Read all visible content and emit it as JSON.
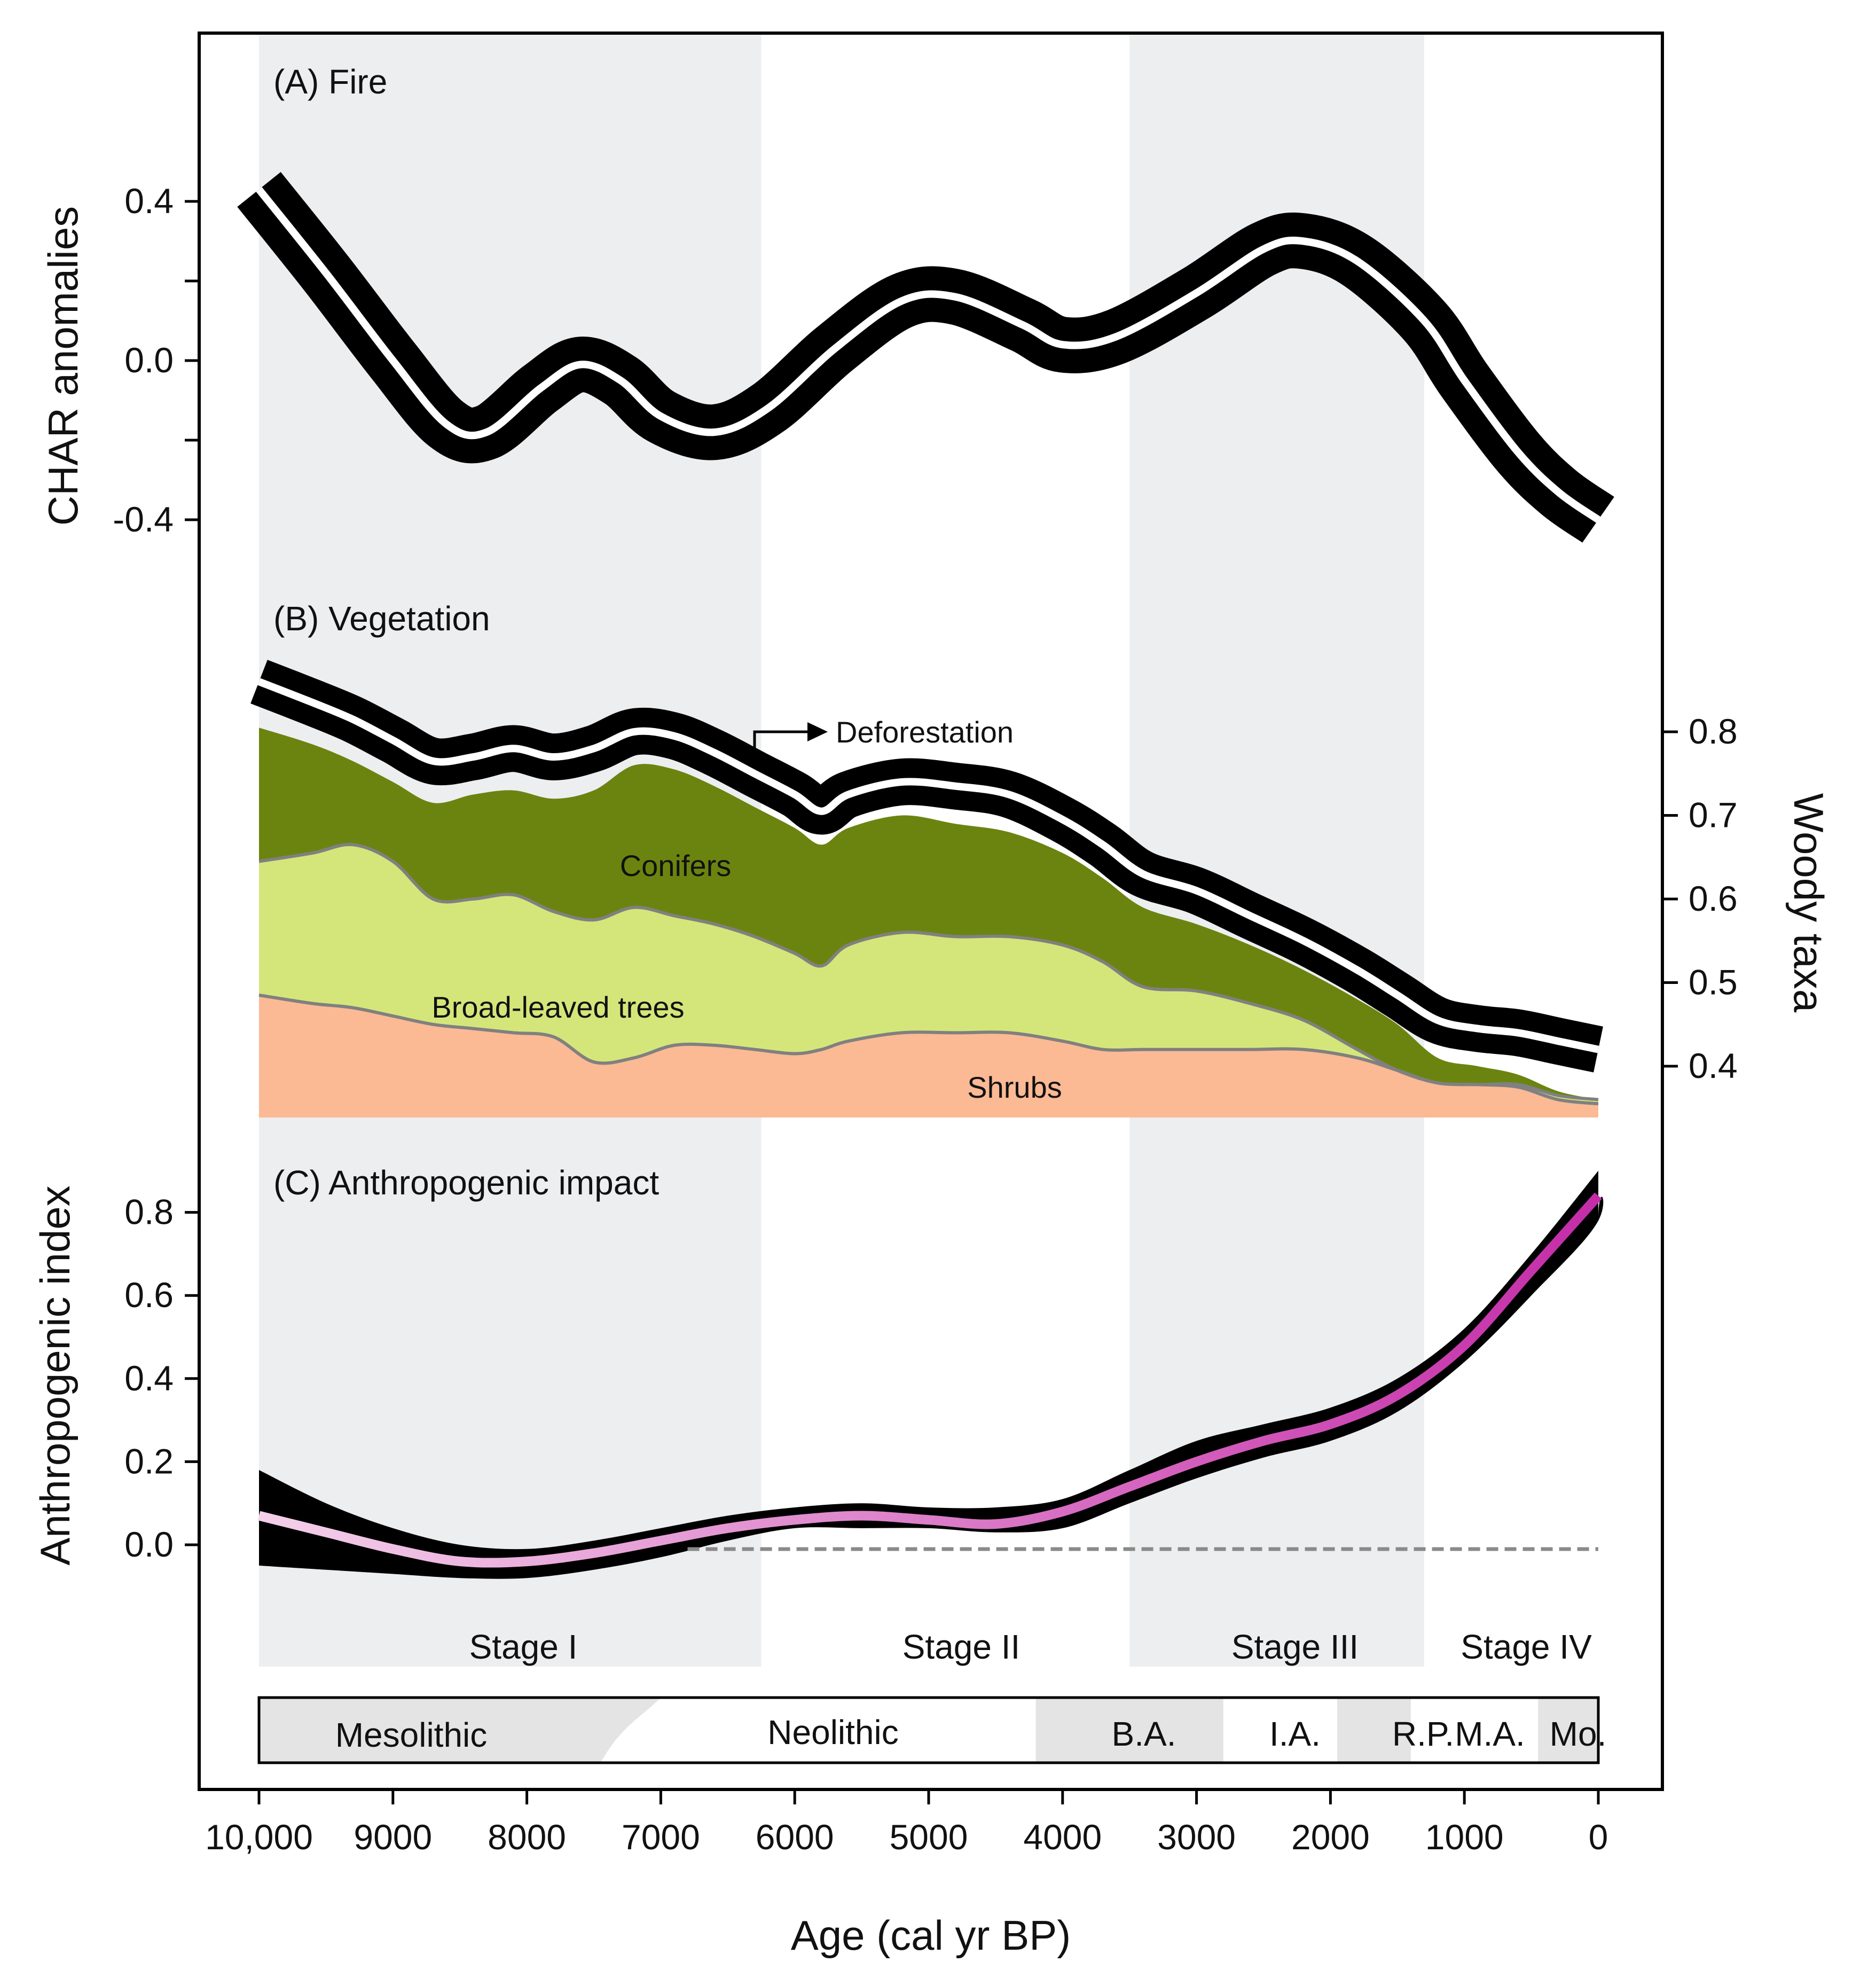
{
  "chart_data": [
    {
      "panel": "A",
      "type": "line",
      "title": "(A) Fire",
      "ylabel": "CHAR anomalies",
      "yticks": [
        0.4,
        0.0,
        -0.4
      ],
      "ytick_labels": [
        "0.4",
        "0.0",
        "-0.4"
      ],
      "ylim": [
        -0.55,
        0.65
      ],
      "series": [
        {
          "name": "CHAR anomalies",
          "x": [
            10000,
            9500,
            9000,
            8600,
            8300,
            7900,
            7600,
            7300,
            7000,
            6600,
            6200,
            5700,
            5200,
            4800,
            4300,
            4000,
            3600,
            3000,
            2500,
            2200,
            1800,
            1300,
            1000,
            600,
            300,
            0
          ],
          "y": [
            0.43,
            0.22,
            0.0,
            -0.16,
            -0.18,
            -0.07,
            -0.01,
            -0.05,
            -0.14,
            -0.18,
            -0.12,
            0.03,
            0.15,
            0.16,
            0.09,
            0.04,
            0.06,
            0.17,
            0.28,
            0.3,
            0.25,
            0.1,
            -0.05,
            -0.23,
            -0.33,
            -0.4
          ],
          "band": 0.07
        }
      ]
    },
    {
      "panel": "B",
      "type": "area",
      "title": "(B) Vegetation",
      "ylabel": "Woody taxa",
      "yticks": [
        0.8,
        0.7,
        0.6,
        0.5,
        0.4
      ],
      "ytick_labels": [
        "0.8",
        "0.7",
        "0.6",
        "0.5",
        "0.4"
      ],
      "ylim": [
        0.34,
        0.88
      ],
      "x": [
        10000,
        9600,
        9300,
        9000,
        8700,
        8400,
        8100,
        7800,
        7500,
        7200,
        6900,
        6600,
        6300,
        6000,
        5800,
        5600,
        5200,
        4800,
        4400,
        4000,
        3700,
        3400,
        3000,
        2600,
        2200,
        1800,
        1500,
        1200,
        900,
        600,
        300,
        0
      ],
      "series": [
        {
          "name": "Shrubs",
          "label": "Shrubs",
          "color": "#fbb994",
          "values": [
            0.485,
            0.475,
            0.47,
            0.46,
            0.45,
            0.445,
            0.44,
            0.435,
            0.405,
            0.41,
            0.425,
            0.425,
            0.42,
            0.415,
            0.42,
            0.43,
            0.44,
            0.44,
            0.44,
            0.43,
            0.42,
            0.42,
            0.42,
            0.42,
            0.42,
            0.41,
            0.395,
            0.38,
            0.378,
            0.375,
            0.36,
            0.355
          ]
        },
        {
          "name": "Broad-leaved trees",
          "label": "Broad-leaved trees",
          "color": "#d4e67a",
          "values": [
            0.645,
            0.655,
            0.665,
            0.645,
            0.6,
            0.6,
            0.605,
            0.585,
            0.575,
            0.59,
            0.58,
            0.57,
            0.555,
            0.535,
            0.52,
            0.545,
            0.56,
            0.555,
            0.555,
            0.545,
            0.525,
            0.495,
            0.49,
            0.475,
            0.455,
            0.42,
            0.395,
            0.38,
            0.378,
            0.378,
            0.365,
            0.36
          ]
        },
        {
          "name": "Conifers",
          "label": "Conifers",
          "color": "#6b8410",
          "values": [
            0.805,
            0.785,
            0.765,
            0.74,
            0.715,
            0.725,
            0.73,
            0.72,
            0.73,
            0.76,
            0.755,
            0.735,
            0.71,
            0.685,
            0.665,
            0.685,
            0.7,
            0.69,
            0.68,
            0.655,
            0.625,
            0.59,
            0.57,
            0.545,
            0.515,
            0.48,
            0.45,
            0.41,
            0.4,
            0.39,
            0.37,
            0.36
          ]
        }
      ],
      "woody_total": {
        "name": "Woody taxa",
        "values": [
          0.86,
          0.835,
          0.815,
          0.79,
          0.765,
          0.77,
          0.78,
          0.77,
          0.78,
          0.8,
          0.795,
          0.775,
          0.75,
          0.725,
          0.705,
          0.725,
          0.74,
          0.735,
          0.725,
          0.695,
          0.665,
          0.63,
          0.61,
          0.58,
          0.55,
          0.515,
          0.485,
          0.455,
          0.445,
          0.44,
          0.43,
          0.42
        ],
        "band": 0.028
      },
      "annotations": [
        {
          "text": "Deforestation",
          "x": 6400
        }
      ]
    },
    {
      "panel": "C",
      "type": "line",
      "title": "(C) Anthropogenic impact",
      "ylabel": "Anthropogenic index",
      "yticks": [
        0.8,
        0.6,
        0.4,
        0.2,
        0.0
      ],
      "ytick_labels": [
        "0.8",
        "0.6",
        "0.4",
        "0.2",
        "0.0"
      ],
      "ylim": [
        -0.13,
        0.95
      ],
      "baseline": 0.0,
      "series": [
        {
          "name": "Anthropogenic index",
          "x": [
            10000,
            9500,
            9000,
            8500,
            8000,
            7500,
            7000,
            6500,
            6000,
            5500,
            5000,
            4500,
            4000,
            3500,
            3000,
            2500,
            2000,
            1500,
            1000,
            500,
            0
          ],
          "y": [
            0.07,
            0.03,
            -0.01,
            -0.04,
            -0.04,
            -0.02,
            0.01,
            0.04,
            0.06,
            0.07,
            0.06,
            0.05,
            0.08,
            0.14,
            0.2,
            0.25,
            0.29,
            0.36,
            0.48,
            0.66,
            0.84
          ],
          "upper": [
            0.18,
            0.1,
            0.04,
            0.0,
            -0.01,
            0.01,
            0.04,
            0.07,
            0.09,
            0.1,
            0.09,
            0.09,
            0.11,
            0.18,
            0.25,
            0.29,
            0.33,
            0.4,
            0.52,
            0.7,
            0.9
          ],
          "lower": [
            -0.05,
            -0.06,
            -0.07,
            -0.08,
            -0.08,
            -0.06,
            -0.03,
            0.01,
            0.04,
            0.04,
            0.04,
            0.03,
            0.04,
            0.1,
            0.16,
            0.21,
            0.25,
            0.32,
            0.44,
            0.6,
            0.78
          ]
        }
      ]
    }
  ],
  "xaxis": {
    "label": "Age (cal yr BP)",
    "ticks": [
      10000,
      9000,
      8000,
      7000,
      6000,
      5000,
      4000,
      3000,
      2000,
      1000,
      0
    ],
    "tick_labels": [
      "10,000",
      "9000",
      "8000",
      "7000",
      "6000",
      "5000",
      "4000",
      "3000",
      "2000",
      "1000",
      "0"
    ],
    "xlim": [
      10450,
      -400
    ]
  },
  "stages": [
    {
      "label": "Stage I",
      "from": 10000,
      "to": 6250,
      "shaded": true
    },
    {
      "label": "Stage II",
      "from": 6250,
      "to": 3500,
      "shaded": false
    },
    {
      "label": "Stage III",
      "from": 3500,
      "to": 1300,
      "shaded": true
    },
    {
      "label": "Stage IV",
      "from": 1300,
      "to": 0,
      "shaded": false
    }
  ],
  "periods": [
    {
      "label": "Mesolithic",
      "from": 10000,
      "to": 7000,
      "shaded": true
    },
    {
      "label": "Neolithic",
      "from": 7000,
      "to": 4200,
      "shaded": false
    },
    {
      "label": "B.A.",
      "from": 4200,
      "to": 2800,
      "shaded": true
    },
    {
      "label": "I.A.",
      "from": 2800,
      "to": 1950,
      "shaded": false
    },
    {
      "label": "R.P.",
      "from": 1950,
      "to": 1400,
      "shaded": true
    },
    {
      "label": "M.A.",
      "from": 1400,
      "to": 450,
      "shaded": false
    },
    {
      "label": "Mo.",
      "from": 450,
      "to": 0,
      "shaded": true
    }
  ],
  "colors": {
    "stage_shade": "#edeef0",
    "period_shade": "#e4e4e4",
    "line_band": "#000000",
    "line_core": "#ffffff",
    "impact_line_start": "#f4d0ea",
    "impact_line_end": "#c42ca8",
    "divider": "#808080",
    "baseline": "#8a8a8a"
  }
}
